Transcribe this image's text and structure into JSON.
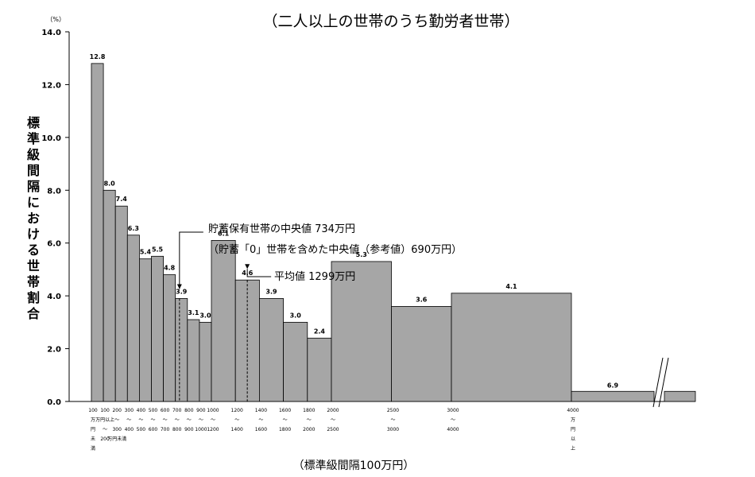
{
  "chart_data": {
    "type": "bar",
    "title": "（二人以上の世帯のうち勤労者世帯）",
    "ylabel": "標準級間隔における世帯割合",
    "y_unit": "（%）",
    "xlabel": "（標準級間隔100万円）",
    "ylim": [
      0,
      14
    ],
    "yticks": [
      "0.0",
      "2.0",
      "4.0",
      "6.0",
      "8.0",
      "10.0",
      "12.0",
      "14.0"
    ],
    "grid": false,
    "bars": [
      {
        "from": 0,
        "to": 100,
        "value": 12.8,
        "label": "12.8",
        "tick": [
          "100",
          "万",
          "円",
          "未",
          "満"
        ]
      },
      {
        "from": 100,
        "to": 200,
        "value": 8.0,
        "label": "8.0",
        "tick": [
          "100",
          "万円以上",
          "〜",
          "200"
        ]
      },
      {
        "from": 200,
        "to": 300,
        "value": 7.4,
        "label": "7.4",
        "tick": [
          "200",
          "〜",
          "300",
          "万円未満"
        ]
      },
      {
        "from": 300,
        "to": 400,
        "value": 6.3,
        "label": "6.3",
        "tick": [
          "300",
          "〜",
          "400"
        ]
      },
      {
        "from": 400,
        "to": 500,
        "value": 5.4,
        "label": "5.4",
        "tick": [
          "400",
          "〜",
          "500"
        ]
      },
      {
        "from": 500,
        "to": 600,
        "value": 5.5,
        "label": "5.5",
        "tick": [
          "500",
          "〜",
          "600"
        ]
      },
      {
        "from": 600,
        "to": 700,
        "value": 4.8,
        "label": "4.8",
        "tick": [
          "600",
          "〜",
          "700"
        ]
      },
      {
        "from": 700,
        "to": 800,
        "value": 3.9,
        "label": "3.9",
        "tick": [
          "700",
          "〜",
          "800"
        ]
      },
      {
        "from": 800,
        "to": 900,
        "value": 3.1,
        "label": "3.1",
        "tick": [
          "800",
          "〜",
          "900"
        ]
      },
      {
        "from": 900,
        "to": 1000,
        "value": 3.0,
        "label": "3.0",
        "tick": [
          "900",
          "〜",
          "1000"
        ]
      },
      {
        "from": 1000,
        "to": 1200,
        "value": 6.1,
        "label": "6.1",
        "tick": [
          "1000",
          "〜",
          "1200"
        ]
      },
      {
        "from": 1200,
        "to": 1400,
        "value": 4.6,
        "label": "4.6",
        "tick": [
          "1200",
          "〜",
          "1400"
        ]
      },
      {
        "from": 1400,
        "to": 1600,
        "value": 3.9,
        "label": "3.9",
        "tick": [
          "1400",
          "〜",
          "1600"
        ]
      },
      {
        "from": 1600,
        "to": 1800,
        "value": 3.0,
        "label": "3.0",
        "tick": [
          "1600",
          "〜",
          "1800"
        ]
      },
      {
        "from": 1800,
        "to": 2000,
        "value": 2.4,
        "label": "2.4",
        "tick": [
          "1800",
          "〜",
          "2000"
        ]
      },
      {
        "from": 2000,
        "to": 2500,
        "value": 5.3,
        "label": "5.3",
        "tick": [
          "2000",
          "〜",
          "2500"
        ]
      },
      {
        "from": 2500,
        "to": 3000,
        "value": 3.6,
        "label": "3.6",
        "tick": [
          "2500",
          "〜",
          "3000"
        ]
      },
      {
        "from": 3000,
        "to": 4000,
        "value": 4.1,
        "label": "4.1",
        "tick": [
          "3000",
          "〜",
          "4000"
        ]
      },
      {
        "from": 4000,
        "to": null,
        "value": 6.9,
        "label": "6.9",
        "tick": [
          "4000",
          "万",
          "円",
          "以",
          "上"
        ]
      }
    ],
    "annotations": {
      "median": {
        "line1": "貯蓄保有世帯の中央値 734万円",
        "line2": "（貯蓄「0」世帯を含めた中央値（参考値）690万円）",
        "x": 734
      },
      "mean": {
        "text": "平均値 1299万円",
        "x": 1299
      }
    }
  }
}
